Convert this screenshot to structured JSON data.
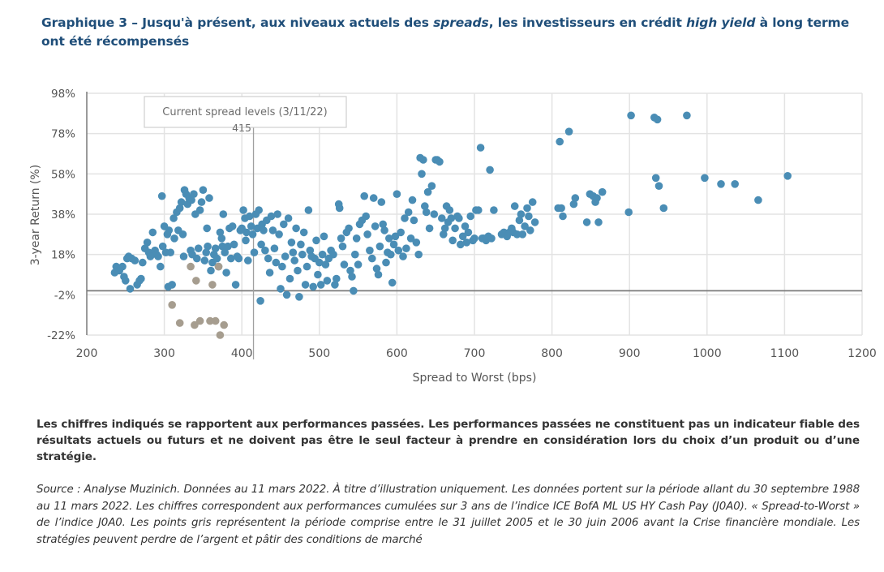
{
  "title": {
    "prefix": "Graphique 3 – Jusqu'à présent, aux niveaux actuels des ",
    "italic1": "spreads",
    "middle": ", les investisseurs en crédit ",
    "italic2": "high yield",
    "suffix": " à long terme ont été récompensés"
  },
  "chart_data": {
    "type": "scatter",
    "xlabel": "Spread to Worst (bps)",
    "ylabel": "3-year Return (%)",
    "xlim": [
      200,
      1200
    ],
    "ylim": [
      -22,
      98
    ],
    "x_ticks": [
      "200",
      "300",
      "400",
      "500",
      "600",
      "700",
      "800",
      "900",
      "1000",
      "1100",
      "1200"
    ],
    "y_ticks": [
      "98%",
      "78%",
      "58%",
      "38%",
      "18%",
      "-2%",
      "-22%"
    ],
    "y_tick_values": [
      98,
      78,
      58,
      38,
      18,
      -2,
      -22
    ],
    "grid": true,
    "reference_line_y": 0,
    "annotation": {
      "label": "Current spread levels (3/11/22)",
      "value_label": "415",
      "x": 415
    },
    "colors": {
      "blue": "#4a8db5",
      "grey": "#a69d8f",
      "grid": "#e3e3e3",
      "axis": "#7a7a7a"
    },
    "series": [
      {
        "name": "blue",
        "points": [
          [
            236,
            9
          ],
          [
            238,
            12
          ],
          [
            242,
            10
          ],
          [
            246,
            12
          ],
          [
            248,
            7
          ],
          [
            250,
            5
          ],
          [
            252,
            16
          ],
          [
            254,
            17
          ],
          [
            256,
            1
          ],
          [
            258,
            16
          ],
          [
            262,
            15
          ],
          [
            265,
            3
          ],
          [
            268,
            5
          ],
          [
            270,
            6
          ],
          [
            272,
            14
          ],
          [
            275,
            21
          ],
          [
            278,
            24
          ],
          [
            280,
            19
          ],
          [
            282,
            17
          ],
          [
            285,
            29
          ],
          [
            288,
            20
          ],
          [
            290,
            18
          ],
          [
            292,
            17
          ],
          [
            295,
            12
          ],
          [
            297,
            47
          ],
          [
            298,
            22
          ],
          [
            300,
            32
          ],
          [
            302,
            19
          ],
          [
            304,
            28
          ],
          [
            305,
            2
          ],
          [
            306,
            30
          ],
          [
            308,
            19
          ],
          [
            310,
            3
          ],
          [
            312,
            36
          ],
          [
            313,
            26
          ],
          [
            316,
            39
          ],
          [
            318,
            30
          ],
          [
            320,
            41
          ],
          [
            322,
            44
          ],
          [
            324,
            28
          ],
          [
            325,
            17
          ],
          [
            326,
            50
          ],
          [
            328,
            48
          ],
          [
            330,
            43
          ],
          [
            332,
            46
          ],
          [
            334,
            20
          ],
          [
            335,
            45
          ],
          [
            336,
            18
          ],
          [
            338,
            48
          ],
          [
            340,
            38
          ],
          [
            342,
            16
          ],
          [
            344,
            21
          ],
          [
            346,
            40
          ],
          [
            348,
            44
          ],
          [
            350,
            50
          ],
          [
            352,
            15
          ],
          [
            354,
            19
          ],
          [
            355,
            31
          ],
          [
            356,
            22
          ],
          [
            358,
            46
          ],
          [
            360,
            10
          ],
          [
            362,
            14
          ],
          [
            364,
            18
          ],
          [
            366,
            21
          ],
          [
            368,
            16
          ],
          [
            370,
            12
          ],
          [
            372,
            29
          ],
          [
            374,
            26
          ],
          [
            375,
            22
          ],
          [
            376,
            38
          ],
          [
            378,
            19
          ],
          [
            380,
            9
          ],
          [
            382,
            22
          ],
          [
            384,
            31
          ],
          [
            386,
            16
          ],
          [
            388,
            32
          ],
          [
            390,
            23
          ],
          [
            392,
            3
          ],
          [
            394,
            17
          ],
          [
            396,
            16
          ],
          [
            398,
            30
          ],
          [
            400,
            31
          ],
          [
            402,
            40
          ],
          [
            404,
            36
          ],
          [
            405,
            25
          ],
          [
            406,
            29
          ],
          [
            408,
            15
          ],
          [
            410,
            37
          ],
          [
            412,
            32
          ],
          [
            414,
            28
          ],
          [
            416,
            19
          ],
          [
            418,
            38
          ],
          [
            420,
            31
          ],
          [
            422,
            40
          ],
          [
            424,
            -5
          ],
          [
            425,
            23
          ],
          [
            426,
            33
          ],
          [
            428,
            30
          ],
          [
            430,
            20
          ],
          [
            432,
            35
          ],
          [
            434,
            16
          ],
          [
            436,
            9
          ],
          [
            438,
            37
          ],
          [
            440,
            30
          ],
          [
            442,
            21
          ],
          [
            444,
            14
          ],
          [
            446,
            38
          ],
          [
            448,
            28
          ],
          [
            450,
            1
          ],
          [
            452,
            12
          ],
          [
            454,
            33
          ],
          [
            456,
            17
          ],
          [
            458,
            -2
          ],
          [
            460,
            36
          ],
          [
            462,
            6
          ],
          [
            464,
            24
          ],
          [
            466,
            19
          ],
          [
            468,
            15
          ],
          [
            470,
            31
          ],
          [
            472,
            10
          ],
          [
            474,
            -3
          ],
          [
            476,
            23
          ],
          [
            478,
            18
          ],
          [
            480,
            29
          ],
          [
            482,
            3
          ],
          [
            484,
            12
          ],
          [
            486,
            40
          ],
          [
            488,
            20
          ],
          [
            490,
            17
          ],
          [
            492,
            2
          ],
          [
            494,
            16
          ],
          [
            496,
            25
          ],
          [
            498,
            8
          ],
          [
            500,
            14
          ],
          [
            502,
            3
          ],
          [
            504,
            18
          ],
          [
            506,
            27
          ],
          [
            508,
            13
          ],
          [
            510,
            5
          ],
          [
            512,
            16
          ],
          [
            515,
            20
          ],
          [
            518,
            18
          ],
          [
            520,
            3
          ],
          [
            522,
            6
          ],
          [
            525,
            43
          ],
          [
            526,
            41
          ],
          [
            528,
            26
          ],
          [
            530,
            22
          ],
          [
            532,
            13
          ],
          [
            535,
            29
          ],
          [
            538,
            31
          ],
          [
            540,
            10
          ],
          [
            542,
            7
          ],
          [
            544,
            0
          ],
          [
            546,
            18
          ],
          [
            548,
            26
          ],
          [
            550,
            13
          ],
          [
            552,
            33
          ],
          [
            555,
            35
          ],
          [
            558,
            47
          ],
          [
            560,
            37
          ],
          [
            562,
            28
          ],
          [
            565,
            20
          ],
          [
            568,
            16
          ],
          [
            570,
            46
          ],
          [
            572,
            32
          ],
          [
            574,
            11
          ],
          [
            576,
            8
          ],
          [
            578,
            22
          ],
          [
            580,
            44
          ],
          [
            582,
            33
          ],
          [
            584,
            30
          ],
          [
            586,
            14
          ],
          [
            588,
            19
          ],
          [
            590,
            26
          ],
          [
            592,
            18
          ],
          [
            594,
            4
          ],
          [
            596,
            23
          ],
          [
            598,
            27
          ],
          [
            600,
            48
          ],
          [
            602,
            20
          ],
          [
            605,
            29
          ],
          [
            608,
            17
          ],
          [
            610,
            36
          ],
          [
            612,
            21
          ],
          [
            615,
            39
          ],
          [
            618,
            26
          ],
          [
            620,
            45
          ],
          [
            622,
            35
          ],
          [
            625,
            24
          ],
          [
            628,
            18
          ],
          [
            630,
            66
          ],
          [
            632,
            58
          ],
          [
            634,
            65
          ],
          [
            636,
            42
          ],
          [
            638,
            39
          ],
          [
            640,
            49
          ],
          [
            642,
            31
          ],
          [
            645,
            52
          ],
          [
            648,
            38
          ],
          [
            650,
            65
          ],
          [
            652,
            65
          ],
          [
            655,
            64
          ],
          [
            658,
            36
          ],
          [
            660,
            28
          ],
          [
            662,
            31
          ],
          [
            664,
            42
          ],
          [
            666,
            34
          ],
          [
            668,
            40
          ],
          [
            670,
            36
          ],
          [
            672,
            25
          ],
          [
            675,
            31
          ],
          [
            678,
            37
          ],
          [
            680,
            36
          ],
          [
            682,
            23
          ],
          [
            685,
            27
          ],
          [
            688,
            32
          ],
          [
            690,
            24
          ],
          [
            692,
            29
          ],
          [
            695,
            37
          ],
          [
            698,
            25
          ],
          [
            700,
            26
          ],
          [
            702,
            40
          ],
          [
            705,
            40
          ],
          [
            708,
            71
          ],
          [
            710,
            26
          ],
          [
            712,
            26
          ],
          [
            715,
            25
          ],
          [
            718,
            27
          ],
          [
            720,
            60
          ],
          [
            722,
            26
          ],
          [
            725,
            40
          ],
          [
            735,
            28
          ],
          [
            738,
            29
          ],
          [
            742,
            27
          ],
          [
            745,
            29
          ],
          [
            748,
            31
          ],
          [
            750,
            29
          ],
          [
            752,
            42
          ],
          [
            755,
            28
          ],
          [
            758,
            35
          ],
          [
            760,
            38
          ],
          [
            762,
            28
          ],
          [
            765,
            32
          ],
          [
            768,
            41
          ],
          [
            770,
            37
          ],
          [
            772,
            30
          ],
          [
            775,
            44
          ],
          [
            778,
            34
          ],
          [
            808,
            41
          ],
          [
            810,
            74
          ],
          [
            812,
            41
          ],
          [
            814,
            37
          ],
          [
            822,
            79
          ],
          [
            828,
            43
          ],
          [
            830,
            46
          ],
          [
            845,
            34
          ],
          [
            849,
            48
          ],
          [
            853,
            47
          ],
          [
            856,
            44
          ],
          [
            858,
            46
          ],
          [
            860,
            34
          ],
          [
            865,
            49
          ],
          [
            899,
            39
          ],
          [
            902,
            87
          ],
          [
            932,
            86
          ],
          [
            934,
            56
          ],
          [
            936,
            85
          ],
          [
            938,
            52
          ],
          [
            944,
            41
          ],
          [
            974,
            87
          ],
          [
            997,
            56
          ],
          [
            1018,
            53
          ],
          [
            1036,
            53
          ],
          [
            1066,
            45
          ],
          [
            1104,
            57
          ]
        ]
      },
      {
        "name": "grey",
        "points": [
          [
            310,
            -7
          ],
          [
            320,
            -16
          ],
          [
            334,
            12
          ],
          [
            339,
            -17
          ],
          [
            341,
            5
          ],
          [
            346,
            -15
          ],
          [
            359,
            -15
          ],
          [
            362,
            3
          ],
          [
            366,
            -15
          ],
          [
            370,
            12
          ],
          [
            372,
            -22
          ],
          [
            377,
            -17
          ]
        ]
      }
    ]
  },
  "note": "Les chiffres indiqués se rapportent aux performances passées. Les performances passées ne constituent pas un indicateur fiable des résultats actuels ou futurs et ne doivent pas être le seul facteur à prendre en considération lors du choix d’un produit ou d’une stratégie.",
  "source": "Source : Analyse Muzinich. Données au 11 mars 2022. À titre d’illustration uniquement. Les données portent sur la période allant du 30 septembre 1988 au 11 mars 2022. Les chiffres correspondent aux performances cumulées sur 3 ans de l’indice ICE BofA ML US HY Cash Pay (J0A0). « Spread-to-Worst » de l’indice J0A0. Les points gris représentent la période comprise entre le 31 juillet 2005 et le 30 juin 2006 avant la Crise financière mondiale. Les stratégies peuvent perdre de l’argent et pâtir des conditions de marché"
}
